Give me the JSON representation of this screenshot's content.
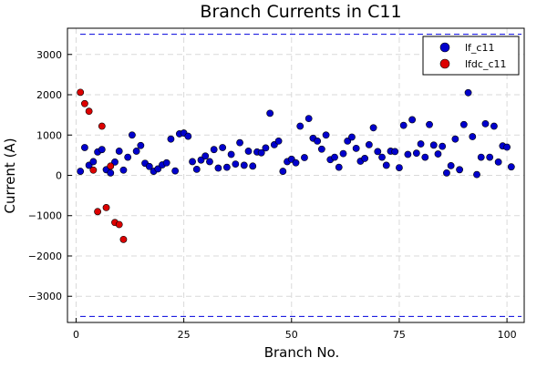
{
  "chart_data": {
    "type": "scatter",
    "title": "Branch Currents in C11",
    "xlabel": "Branch No.",
    "ylabel": "Current (A)",
    "xlim": [
      -2,
      104
    ],
    "ylim": [
      -3650,
      3650
    ],
    "x_ticks": [
      0,
      25,
      50,
      75,
      100
    ],
    "x_tick_labels": [
      "0",
      "25",
      "50",
      "75",
      "100"
    ],
    "y_ticks": [
      -3000,
      -2000,
      -1000,
      0,
      1000,
      2000,
      3000
    ],
    "y_tick_labels": [
      "−3000",
      "−2000",
      "−1000",
      "0",
      "1000",
      "2000",
      "3000"
    ],
    "grid": true,
    "legend_position": "top-right",
    "reference_lines": [
      {
        "y": 3500,
        "color": "#0000dd",
        "style": "dashed"
      },
      {
        "y": -3500,
        "color": "#0000dd",
        "style": "dashed"
      }
    ],
    "series": [
      {
        "name": "lf_c11",
        "color": "#0000cc",
        "x": [
          1,
          2,
          3,
          4,
          5,
          6,
          7,
          8,
          9,
          10,
          11,
          12,
          13,
          14,
          15,
          16,
          17,
          18,
          19,
          20,
          21,
          22,
          23,
          24,
          25,
          26,
          27,
          28,
          29,
          30,
          31,
          32,
          33,
          34,
          35,
          36,
          37,
          38,
          39,
          40,
          41,
          42,
          43,
          44,
          45,
          46,
          47,
          48,
          49,
          50,
          51,
          52,
          53,
          54,
          55,
          56,
          57,
          58,
          59,
          60,
          61,
          62,
          63,
          64,
          65,
          66,
          67,
          68,
          69,
          70,
          71,
          72,
          73,
          74,
          75,
          76,
          77,
          78,
          79,
          80,
          81,
          82,
          83,
          84,
          85,
          86,
          87,
          88,
          89,
          90,
          91,
          92,
          93,
          94,
          95,
          96,
          97,
          98,
          99,
          100,
          101
        ],
        "y": [
          100,
          690,
          250,
          340,
          580,
          640,
          140,
          60,
          330,
          600,
          130,
          450,
          1000,
          600,
          740,
          300,
          220,
          100,
          160,
          260,
          310,
          900,
          110,
          1030,
          1050,
          970,
          340,
          150,
          380,
          480,
          340,
          640,
          180,
          690,
          200,
          520,
          280,
          810,
          250,
          600,
          230,
          580,
          560,
          680,
          1540,
          760,
          850,
          100,
          340,
          400,
          310,
          1220,
          440,
          1410,
          920,
          850,
          650,
          1000,
          390,
          450,
          200,
          540,
          850,
          950,
          670,
          350,
          420,
          760,
          1180,
          590,
          450,
          250,
          600,
          590,
          190,
          1240,
          520,
          1380,
          550,
          780,
          450,
          1260,
          750,
          530,
          720,
          60,
          240,
          900,
          140,
          1260,
          2050,
          960,
          20,
          450,
          1280,
          450,
          1220,
          330,
          730,
          700,
          210
        ]
      },
      {
        "name": "lfdc_c11",
        "color": "#dd0000",
        "x": [
          1,
          2,
          3,
          4,
          5,
          6,
          7,
          8,
          9,
          10,
          11
        ],
        "y": [
          2060,
          1780,
          1590,
          130,
          -900,
          1220,
          -800,
          230,
          -1170,
          -1220,
          -1590
        ]
      }
    ]
  }
}
